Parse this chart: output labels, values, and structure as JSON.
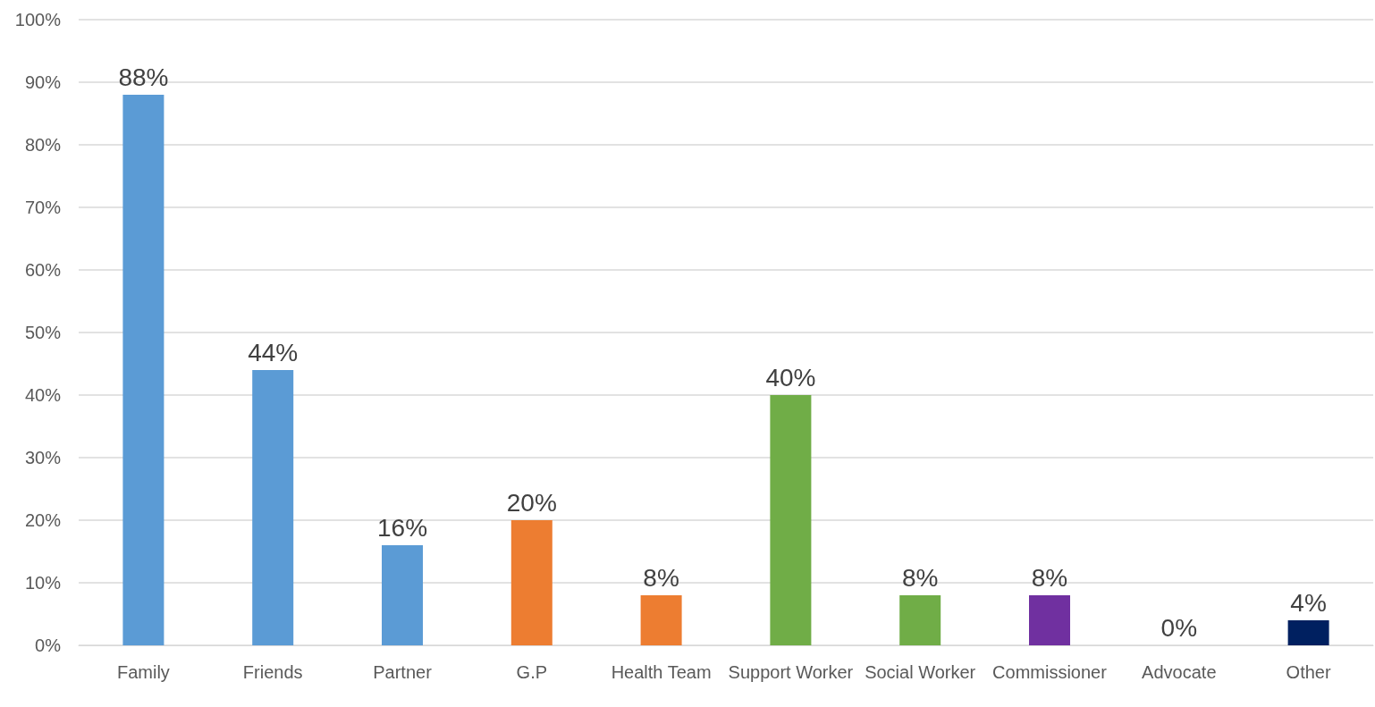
{
  "chart_data": {
    "type": "bar",
    "categories": [
      "Family",
      "Friends",
      "Partner",
      "G.P",
      "Health Team",
      "Support Worker",
      "Social Worker",
      "Commissioner",
      "Advocate",
      "Other"
    ],
    "values": [
      88,
      44,
      16,
      20,
      8,
      40,
      8,
      8,
      0,
      4
    ],
    "colors": [
      "#5b9bd5",
      "#5b9bd5",
      "#5b9bd5",
      "#ed7d31",
      "#ed7d31",
      "#70ad47",
      "#70ad47",
      "#7030a0",
      "#7030a0",
      "#002060"
    ],
    "value_labels": [
      "88%",
      "44%",
      "16%",
      "20%",
      "8%",
      "40%",
      "8%",
      "8%",
      "0%",
      "4%"
    ],
    "ylim": [
      0,
      100
    ],
    "yticks": [
      {
        "value": 0,
        "label": "0%"
      },
      {
        "value": 10,
        "label": "10%"
      },
      {
        "value": 20,
        "label": "20%"
      },
      {
        "value": 30,
        "label": "30%"
      },
      {
        "value": 40,
        "label": "40%"
      },
      {
        "value": 50,
        "label": "50%"
      },
      {
        "value": 60,
        "label": "60%"
      },
      {
        "value": 70,
        "label": "70%"
      },
      {
        "value": 80,
        "label": "80%"
      },
      {
        "value": 90,
        "label": "90%"
      },
      {
        "value": 100,
        "label": "100%"
      }
    ],
    "grid": "y"
  }
}
